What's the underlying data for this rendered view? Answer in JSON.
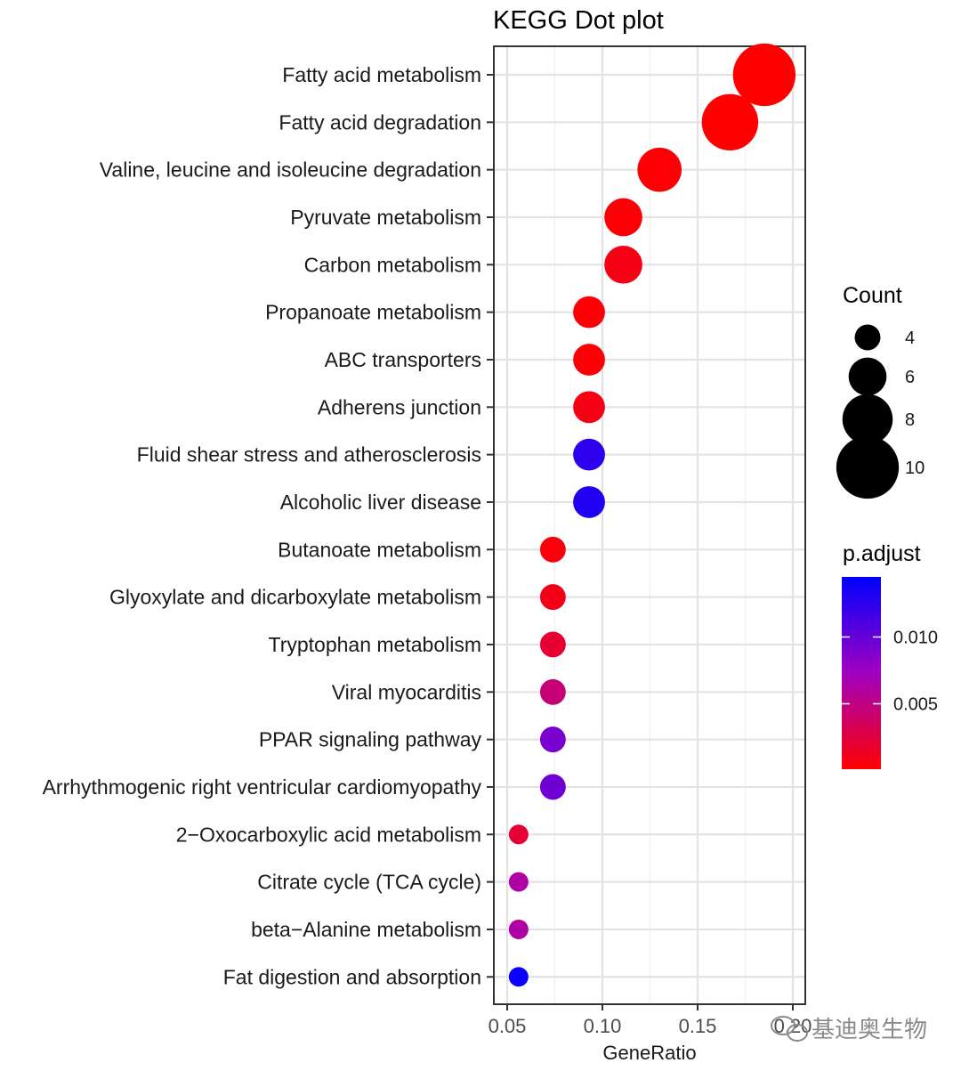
{
  "chart_data": {
    "type": "scatter",
    "title": "KEGG Dot plot",
    "xlabel": "GeneRatio",
    "ylabel": "",
    "xlim": [
      0.043,
      0.2
    ],
    "xticks": [
      0.05,
      0.1,
      0.15,
      0.2
    ],
    "xtick_labels": [
      "0.05",
      "0.10",
      "0.15",
      "0.20"
    ],
    "grid": true,
    "points": [
      {
        "term": "Fatty acid metabolism",
        "gene_ratio": 0.185,
        "count": 10,
        "p_adjust": 0.0001
      },
      {
        "term": "Fatty acid degradation",
        "gene_ratio": 0.167,
        "count": 9,
        "p_adjust": 0.0001
      },
      {
        "term": "Valine, leucine and isoleucine degradation",
        "gene_ratio": 0.13,
        "count": 7,
        "p_adjust": 0.0002
      },
      {
        "term": "Pyruvate metabolism",
        "gene_ratio": 0.111,
        "count": 6,
        "p_adjust": 0.0003
      },
      {
        "term": "Carbon metabolism",
        "gene_ratio": 0.111,
        "count": 6,
        "p_adjust": 0.0008
      },
      {
        "term": "Propanoate metabolism",
        "gene_ratio": 0.093,
        "count": 5,
        "p_adjust": 0.0003
      },
      {
        "term": "ABC transporters",
        "gene_ratio": 0.093,
        "count": 5,
        "p_adjust": 0.0003
      },
      {
        "term": "Adherens junction",
        "gene_ratio": 0.093,
        "count": 5,
        "p_adjust": 0.0008
      },
      {
        "term": "Fluid shear stress and atherosclerosis",
        "gene_ratio": 0.093,
        "count": 5,
        "p_adjust": 0.0125
      },
      {
        "term": "Alcoholic liver disease",
        "gene_ratio": 0.093,
        "count": 5,
        "p_adjust": 0.013
      },
      {
        "term": "Butanoate metabolism",
        "gene_ratio": 0.074,
        "count": 4,
        "p_adjust": 0.0005
      },
      {
        "term": "Glyoxylate and dicarboxylate metabolism",
        "gene_ratio": 0.074,
        "count": 4,
        "p_adjust": 0.001
      },
      {
        "term": "Tryptophan metabolism",
        "gene_ratio": 0.074,
        "count": 4,
        "p_adjust": 0.002
      },
      {
        "term": "Viral myocarditis",
        "gene_ratio": 0.074,
        "count": 4,
        "p_adjust": 0.0045
      },
      {
        "term": "PPAR signaling pathway",
        "gene_ratio": 0.074,
        "count": 4,
        "p_adjust": 0.009
      },
      {
        "term": "Arrhythmogenic right ventricular cardiomyopathy",
        "gene_ratio": 0.074,
        "count": 4,
        "p_adjust": 0.0095
      },
      {
        "term": "2−Oxocarboxylic acid metabolism",
        "gene_ratio": 0.056,
        "count": 3,
        "p_adjust": 0.002
      },
      {
        "term": "Citrate cycle (TCA cycle)",
        "gene_ratio": 0.056,
        "count": 3,
        "p_adjust": 0.0062
      },
      {
        "term": "beta−Alanine metabolism",
        "gene_ratio": 0.056,
        "count": 3,
        "p_adjust": 0.0062
      },
      {
        "term": "Fat digestion and absorption",
        "gene_ratio": 0.056,
        "count": 3,
        "p_adjust": 0.014
      }
    ],
    "legend_size": {
      "title": "Count",
      "entries": [
        {
          "label": "4",
          "value": 4
        },
        {
          "label": "6",
          "value": 6
        },
        {
          "label": "8",
          "value": 8
        },
        {
          "label": "10",
          "value": 10
        }
      ]
    },
    "legend_color": {
      "title": "p.adjust",
      "range": [
        0.0001,
        0.0145
      ],
      "ticks": [
        {
          "label": "0.005",
          "value": 0.005
        },
        {
          "label": "0.010",
          "value": 0.01
        }
      ],
      "low_color": "#ff0000",
      "high_color": "#0000ff",
      "placement": "right"
    }
  },
  "watermark": {
    "text": "基迪奥生物",
    "icon": "wechat-icon"
  }
}
